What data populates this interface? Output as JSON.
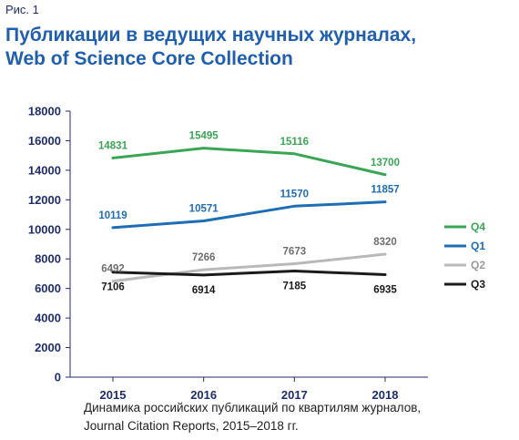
{
  "figure_label": "Рис. 1",
  "title_line1": "Публикации в ведущих научных журналах,",
  "title_line2": "Web of Science Core Collection",
  "caption_line1": "Динамика российских публикаций по квартилям журналов,",
  "caption_line2": "Journal Citation Reports, 2015–2018 гг.",
  "chart_data": {
    "type": "line",
    "x": [
      "2015",
      "2016",
      "2017",
      "2018"
    ],
    "ylim": [
      0,
      18000
    ],
    "yticks": [
      "0",
      "2000",
      "4000",
      "6000",
      "8000",
      "10000",
      "12000",
      "14000",
      "16000",
      "18000"
    ],
    "grid": false,
    "legend_position": "right",
    "series": [
      {
        "name": "Q4",
        "values": [
          14831,
          15495,
          15116,
          13700
        ],
        "labels": [
          "14831",
          "15495",
          "15116",
          "13700"
        ],
        "color": "#3aa655",
        "label_position": "above"
      },
      {
        "name": "Q1",
        "values": [
          10119,
          10571,
          11570,
          11857
        ],
        "labels": [
          "10119",
          "10571",
          "11570",
          "11857"
        ],
        "color": "#1f6db3",
        "label_position": "above"
      },
      {
        "name": "Q2",
        "values": [
          6492,
          7266,
          7673,
          8320
        ],
        "labels": [
          "6492",
          "7266",
          "7673",
          "8320"
        ],
        "color": "#b9b9b9",
        "label_position": "above"
      },
      {
        "name": "Q3",
        "values": [
          7106,
          6914,
          7185,
          6935
        ],
        "labels": [
          "7106",
          "6914",
          "7185",
          "6935"
        ],
        "color": "#1a1a1a",
        "label_position": "below"
      }
    ]
  }
}
